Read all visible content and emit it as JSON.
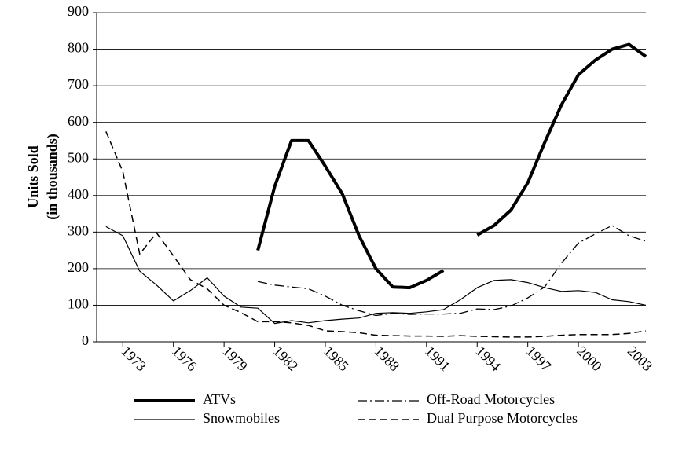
{
  "chart_data": {
    "type": "line",
    "ylabel": [
      "Units Sold",
      "(in thousands)"
    ],
    "x": [
      1972,
      1973,
      1974,
      1975,
      1976,
      1977,
      1978,
      1979,
      1980,
      1981,
      1982,
      1983,
      1984,
      1985,
      1986,
      1987,
      1988,
      1989,
      1990,
      1991,
      1992,
      1993,
      1994,
      1995,
      1996,
      1997,
      1998,
      1999,
      2000,
      2001,
      2002,
      2003,
      2004
    ],
    "xlim": [
      1971.45,
      2004
    ],
    "xticks": [
      1973,
      1976,
      1979,
      1982,
      1985,
      1988,
      1991,
      1994,
      1997,
      2000,
      2003
    ],
    "ylim": [
      0,
      900
    ],
    "yticks": [
      0,
      100,
      200,
      300,
      400,
      500,
      600,
      700,
      800,
      900
    ],
    "grid": true,
    "legend": "bottom",
    "series": [
      {
        "name": "ATVs",
        "color": "#000000",
        "line_style": "solid",
        "line_width": 4,
        "values": [
          null,
          null,
          null,
          null,
          null,
          null,
          null,
          null,
          null,
          250,
          425,
          550,
          550,
          480,
          405,
          290,
          200,
          150,
          148,
          168,
          195,
          null,
          292,
          318,
          360,
          435,
          545,
          648,
          730,
          770,
          800,
          813,
          780
        ]
      },
      {
        "name": "Off-Road Motorcycles",
        "color": "#000000",
        "line_style": "dashdot",
        "line_width": 1.3,
        "values": [
          null,
          null,
          null,
          null,
          null,
          null,
          null,
          null,
          null,
          165,
          155,
          150,
          145,
          125,
          100,
          85,
          72,
          78,
          75,
          76,
          76,
          78,
          90,
          88,
          98,
          120,
          150,
          215,
          270,
          295,
          318,
          290,
          275
        ]
      },
      {
        "name": "Snowmobiles",
        "color": "#000000",
        "line_style": "solid",
        "line_width": 1.2,
        "values": [
          315,
          290,
          193,
          155,
          112,
          140,
          175,
          125,
          95,
          92,
          50,
          58,
          52,
          58,
          62,
          65,
          78,
          80,
          78,
          82,
          88,
          115,
          148,
          168,
          170,
          162,
          148,
          138,
          140,
          135,
          115,
          110,
          100
        ]
      },
      {
        "name": "Dual Purpose Motorcycles",
        "color": "#000000",
        "line_style": "dashed",
        "line_width": 1.5,
        "values": [
          575,
          465,
          240,
          298,
          235,
          170,
          145,
          100,
          80,
          55,
          55,
          52,
          45,
          30,
          28,
          25,
          18,
          17,
          16,
          16,
          15,
          17,
          15,
          14,
          13,
          13,
          15,
          18,
          20,
          20,
          20,
          23,
          30
        ]
      }
    ]
  }
}
